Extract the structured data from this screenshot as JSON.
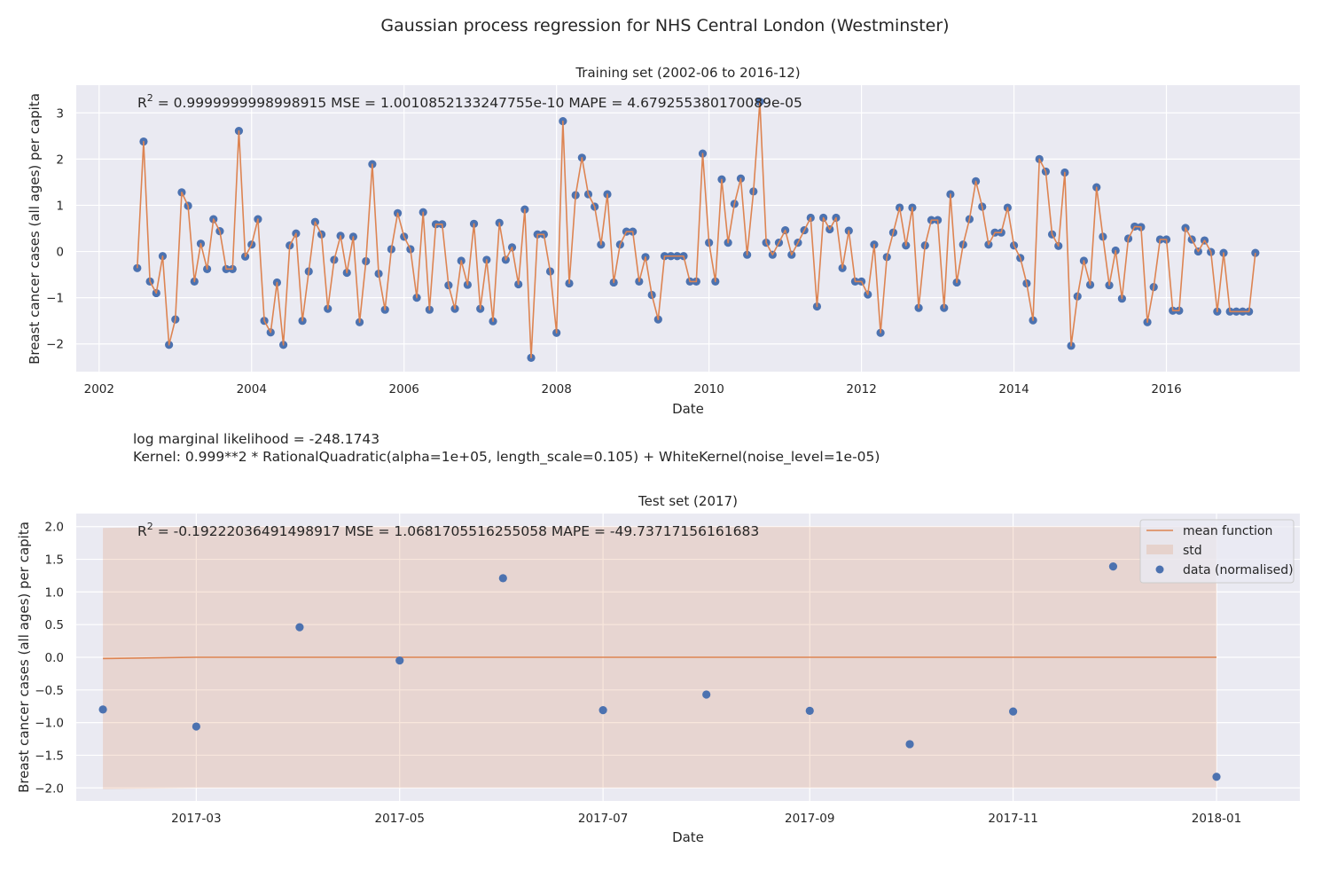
{
  "figure": {
    "title": "Gaussian process regression for NHS Central London (Westminster)"
  },
  "info": {
    "log_marginal_likelihood": "log marginal likelihood = -248.1743",
    "kernel": "Kernel: 0.999**2 * RationalQuadratic(alpha=1e+05, length_scale=0.105) + WhiteKernel(noise_level=1e-05)"
  },
  "colors": {
    "axes_bg": "#eaeaf2",
    "grid": "#ffffff",
    "data_points": "#4c72b0",
    "mean_line": "#dd8452",
    "std_fill": "#dd8452"
  },
  "training": {
    "title": "Training set (2002-06 to 2016-12)",
    "metric_r2_prefix": "R",
    "metric_r2_sup": "2",
    "metric_rest": " = 0.9999999998998915  MSE = 1.0010852133247755e-10  MAPE = 4.679255380170089e-05",
    "xlabel": "Date",
    "ylabel": "Breast cancer cases (all ages) per capita"
  },
  "test": {
    "title": "Test set (2017)",
    "metric_r2_prefix": "R",
    "metric_r2_sup": "2",
    "metric_rest": " = -0.19222036491498917  MSE = 1.0681705516255058  MAPE = -49.73717156161683",
    "xlabel": "Date",
    "ylabel": "Breast cancer cases (all ages) per capita",
    "legend": {
      "mean": "mean function",
      "std": "std",
      "data": "data (normalised)"
    }
  },
  "chart_data": [
    {
      "type": "line",
      "title": "Training set (2002-06 to 2016-12)",
      "xlabel": "Date",
      "ylabel": "Breast cancer cases (all ages) per capita",
      "x_unit": "decimal year",
      "x_start": 2002.5,
      "x_step": 0.08333333,
      "xlim": [
        2001.7,
        2017.75
      ],
      "ylim": [
        -2.6,
        3.6
      ],
      "xticks": [
        2002,
        2004,
        2006,
        2008,
        2010,
        2012,
        2014,
        2016
      ],
      "xtick_labels": [
        "2002",
        "2004",
        "2006",
        "2008",
        "2010",
        "2012",
        "2014",
        "2016"
      ],
      "yticks": [
        -2,
        -1,
        0,
        1,
        2,
        3
      ],
      "ytick_labels": [
        "−2",
        "−1",
        "0",
        "1",
        "2",
        "3"
      ],
      "grid": true,
      "series": [
        {
          "name": "data (normalised)",
          "kind": "scatter",
          "values": [
            -0.36,
            2.38,
            -0.65,
            -0.9,
            -0.1,
            -2.02,
            -1.47,
            1.28,
            0.99,
            -0.65,
            0.17,
            -0.38,
            0.7,
            0.44,
            -0.38,
            -0.38,
            2.61,
            -0.11,
            0.15,
            0.7,
            -1.5,
            -1.75,
            -0.67,
            -2.02,
            0.13,
            0.39,
            -1.5,
            -0.43,
            0.64,
            0.37,
            -1.24,
            -0.18,
            0.34,
            -0.46,
            0.32,
            -1.53,
            -0.21,
            1.89,
            -0.48,
            -1.26,
            0.05,
            0.83,
            0.32,
            0.05,
            -1.0,
            0.85,
            -1.26,
            0.59,
            0.59,
            -0.73,
            -1.24,
            -0.2,
            -0.72,
            0.6,
            -1.24,
            -0.18,
            -1.51,
            0.62,
            -0.18,
            0.09,
            -0.71,
            0.91,
            -2.3,
            0.37,
            0.37,
            -0.43,
            -1.76,
            2.82,
            -0.69,
            1.22,
            2.03,
            1.24,
            0.97,
            0.15,
            1.24,
            -0.67,
            0.15,
            0.43,
            0.43,
            -0.65,
            -0.12,
            -0.94,
            -1.47,
            -0.1,
            -0.1,
            -0.1,
            -0.1,
            -0.65,
            -0.65,
            2.12,
            0.19,
            -0.65,
            1.56,
            0.19,
            1.03,
            1.58,
            -0.07,
            1.3,
            3.24,
            0.19,
            -0.07,
            0.19,
            0.46,
            -0.07,
            0.19,
            0.46,
            0.73,
            -1.19,
            0.73,
            0.48,
            0.73,
            -0.36,
            0.45,
            -0.65,
            -0.65,
            -0.93,
            0.15,
            -1.76,
            -0.12,
            0.41,
            0.95,
            0.13,
            0.95,
            -1.22,
            0.13,
            0.68,
            0.68,
            -1.22,
            1.24,
            -0.67,
            0.15,
            0.7,
            1.52,
            0.97,
            0.15,
            0.41,
            0.41,
            0.95,
            0.13,
            -0.14,
            -0.69,
            -1.49,
            2.0,
            1.73,
            0.37,
            0.12,
            1.71,
            -2.04,
            -0.97,
            -0.2,
            -0.72,
            1.39,
            0.32,
            -0.73,
            0.02,
            -1.02,
            0.28,
            0.54,
            0.53,
            -1.53,
            -0.77,
            0.26,
            0.26,
            -1.28,
            -1.28,
            0.51,
            0.26,
            0.0,
            0.24,
            -0.01,
            -1.3,
            -0.03,
            -1.3,
            -1.3,
            -1.3,
            -1.3,
            -0.03
          ]
        },
        {
          "name": "mean function",
          "kind": "line",
          "same_as": "data (normalised)"
        }
      ]
    },
    {
      "type": "line",
      "title": "Test set (2017)",
      "xlabel": "Date",
      "ylabel": "Breast cancer cases (all ages) per capita",
      "x_unit": "days since 2017-01-01",
      "xlim": [
        23,
        390
      ],
      "ylim": [
        -2.2,
        2.2
      ],
      "xticks": [
        59,
        120,
        181,
        243,
        304,
        365
      ],
      "xtick_labels": [
        "2017-03",
        "2017-05",
        "2017-07",
        "2017-09",
        "2017-11",
        "2018-01"
      ],
      "yticks": [
        -2.0,
        -1.5,
        -1.0,
        -0.5,
        0.0,
        0.5,
        1.0,
        1.5,
        2.0
      ],
      "ytick_labels": [
        "−2.0",
        "−1.5",
        "−1.0",
        "−0.5",
        "0.0",
        "0.5",
        "1.0",
        "1.5",
        "2.0"
      ],
      "grid": true,
      "legend_position": "top-right",
      "series": [
        {
          "name": "data (normalised)",
          "kind": "scatter",
          "x": [
            31,
            59,
            90,
            120,
            151,
            181,
            212,
            243,
            273,
            304,
            334,
            365
          ],
          "values": [
            -0.8,
            -1.06,
            0.46,
            -0.05,
            1.21,
            -0.81,
            -0.57,
            -0.82,
            -1.33,
            -0.83,
            1.39,
            -1.83
          ]
        },
        {
          "name": "mean function",
          "kind": "line",
          "x": [
            31,
            59,
            90,
            120,
            151,
            181,
            212,
            243,
            273,
            304,
            334,
            365
          ],
          "values": [
            -0.02,
            0.0,
            0.0,
            0.0,
            0.0,
            0.0,
            0.0,
            0.0,
            0.0,
            0.0,
            0.0,
            0.0
          ]
        },
        {
          "name": "std",
          "kind": "band",
          "x": [
            31,
            59,
            365
          ],
          "upper": [
            1.98,
            2.0,
            2.0
          ],
          "lower": [
            -2.02,
            -2.0,
            -2.0
          ]
        }
      ]
    }
  ]
}
